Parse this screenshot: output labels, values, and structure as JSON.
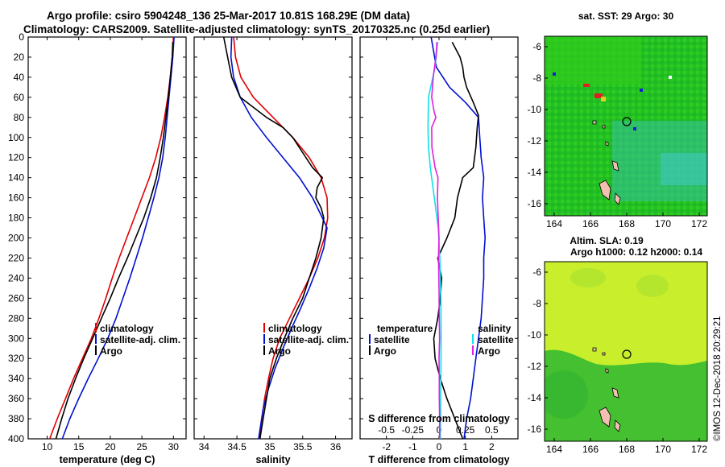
{
  "header": {
    "line1": "Argo profile: csiro 5904248_136 25-Mar-2017 10.81S 168.29E (DM data)",
    "line2": "Climatology: CARS2009. Satellite-adjusted climatology: synTS_20170325.nc (0.25d earlier)"
  },
  "colors": {
    "climatology": "#e00000",
    "satellite": "#0010d0",
    "argo": "#000000",
    "satellite_salinity": "#10e0e8",
    "argo_salinity": "#e020e0"
  },
  "chart_data": [
    {
      "type": "line",
      "id": "temperature",
      "xlabel": "temperature (deg C)",
      "ylabel": "depth",
      "xlim": [
        7,
        32
      ],
      "ylim": [
        400,
        0
      ],
      "xticks": [
        10,
        15,
        20,
        25,
        30
      ],
      "yticks": [
        0,
        20,
        40,
        60,
        80,
        100,
        120,
        140,
        160,
        180,
        200,
        220,
        240,
        260,
        280,
        300,
        320,
        340,
        360,
        380,
        400
      ],
      "legend": [
        "climatology",
        "satellite-adj. clim.",
        "Argo"
      ],
      "series": [
        {
          "name": "climatology",
          "color": "#e00000",
          "points": [
            [
              30,
              0
            ],
            [
              29.8,
              20
            ],
            [
              29.5,
              40
            ],
            [
              29.1,
              60
            ],
            [
              28.6,
              80
            ],
            [
              28,
              100
            ],
            [
              27.2,
              120
            ],
            [
              26.2,
              140
            ],
            [
              25,
              160
            ],
            [
              23.8,
              180
            ],
            [
              22.6,
              200
            ],
            [
              21.4,
              220
            ],
            [
              20.3,
              240
            ],
            [
              19.3,
              260
            ],
            [
              18.2,
              280
            ],
            [
              17,
              300
            ],
            [
              15.6,
              320
            ],
            [
              14.2,
              340
            ],
            [
              12.9,
              360
            ],
            [
              11.6,
              380
            ],
            [
              10.4,
              400
            ]
          ]
        },
        {
          "name": "satellite-adj. clim.",
          "color": "#0010d0",
          "points": [
            [
              30.1,
              0
            ],
            [
              29.9,
              20
            ],
            [
              29.6,
              40
            ],
            [
              29.3,
              60
            ],
            [
              29,
              80
            ],
            [
              28.7,
              100
            ],
            [
              28.3,
              120
            ],
            [
              27.7,
              140
            ],
            [
              26.9,
              160
            ],
            [
              26,
              180
            ],
            [
              25.1,
              200
            ],
            [
              24.1,
              220
            ],
            [
              23.1,
              240
            ],
            [
              22,
              260
            ],
            [
              20.9,
              280
            ],
            [
              19.6,
              300
            ],
            [
              18.1,
              320
            ],
            [
              16.5,
              340
            ],
            [
              15,
              360
            ],
            [
              13.6,
              380
            ],
            [
              12.4,
              400
            ]
          ]
        },
        {
          "name": "Argo",
          "color": "#000000",
          "points": [
            [
              29.9,
              5
            ],
            [
              29.8,
              20
            ],
            [
              29.5,
              40
            ],
            [
              29.2,
              60
            ],
            [
              28.8,
              80
            ],
            [
              28.4,
              100
            ],
            [
              27.9,
              120
            ],
            [
              27.3,
              140
            ],
            [
              26.4,
              160
            ],
            [
              25.3,
              180
            ],
            [
              24,
              200
            ],
            [
              22.7,
              220
            ],
            [
              21.3,
              240
            ],
            [
              20,
              260
            ],
            [
              18.6,
              280
            ],
            [
              17.2,
              300
            ],
            [
              15.8,
              320
            ],
            [
              14.5,
              340
            ],
            [
              13.3,
              360
            ],
            [
              12.3,
              380
            ],
            [
              11.4,
              400
            ]
          ]
        }
      ]
    },
    {
      "type": "line",
      "id": "salinity",
      "xlabel": "salinity",
      "ylabel": "depth",
      "xlim": [
        33.85,
        36.25
      ],
      "ylim": [
        400,
        0
      ],
      "xticks": [
        34,
        34.5,
        35,
        35.5,
        36
      ],
      "yticks": [
        0,
        20,
        40,
        60,
        80,
        100,
        120,
        140,
        160,
        180,
        200,
        220,
        240,
        260,
        280,
        300,
        320,
        340,
        360,
        380,
        400
      ],
      "legend": [
        "climatology",
        "satellite-adj. clim.",
        "Argo"
      ],
      "series": [
        {
          "name": "climatology",
          "color": "#e00000",
          "points": [
            [
              34.45,
              0
            ],
            [
              34.48,
              20
            ],
            [
              34.56,
              40
            ],
            [
              34.75,
              60
            ],
            [
              35.05,
              80
            ],
            [
              35.35,
              100
            ],
            [
              35.6,
              120
            ],
            [
              35.78,
              140
            ],
            [
              35.87,
              160
            ],
            [
              35.88,
              180
            ],
            [
              35.83,
              200
            ],
            [
              35.73,
              220
            ],
            [
              35.6,
              240
            ],
            [
              35.45,
              260
            ],
            [
              35.3,
              280
            ],
            [
              35.15,
              300
            ],
            [
              35.05,
              320
            ],
            [
              34.98,
              340
            ],
            [
              34.92,
              360
            ],
            [
              34.88,
              380
            ],
            [
              34.84,
              400
            ]
          ]
        },
        {
          "name": "satellite-adj. clim.",
          "color": "#0010d0",
          "points": [
            [
              34.42,
              0
            ],
            [
              34.41,
              20
            ],
            [
              34.45,
              40
            ],
            [
              34.55,
              60
            ],
            [
              34.72,
              80
            ],
            [
              34.95,
              100
            ],
            [
              35.2,
              120
            ],
            [
              35.45,
              140
            ],
            [
              35.65,
              160
            ],
            [
              35.8,
              180
            ],
            [
              35.87,
              190
            ],
            [
              35.82,
              210
            ],
            [
              35.72,
              230
            ],
            [
              35.6,
              250
            ],
            [
              35.47,
              270
            ],
            [
              35.33,
              290
            ],
            [
              35.2,
              310
            ],
            [
              35.08,
              330
            ],
            [
              34.98,
              350
            ],
            [
              34.9,
              370
            ],
            [
              34.83,
              400
            ]
          ]
        },
        {
          "name": "Argo",
          "color": "#000000",
          "points": [
            [
              34.3,
              0
            ],
            [
              34.36,
              20
            ],
            [
              34.42,
              40
            ],
            [
              34.55,
              60
            ],
            [
              34.95,
              80
            ],
            [
              35.2,
              90
            ],
            [
              35.35,
              100
            ],
            [
              35.5,
              115
            ],
            [
              35.65,
              130
            ],
            [
              35.8,
              140
            ],
            [
              35.72,
              150
            ],
            [
              35.7,
              160
            ],
            [
              35.78,
              170
            ],
            [
              35.82,
              180
            ],
            [
              35.78,
              200
            ],
            [
              35.7,
              220
            ],
            [
              35.6,
              240
            ],
            [
              35.5,
              260
            ],
            [
              35.35,
              280
            ],
            [
              35.22,
              300
            ],
            [
              35.1,
              320
            ],
            [
              35.0,
              340
            ],
            [
              34.95,
              360
            ],
            [
              34.9,
              380
            ],
            [
              34.85,
              400
            ]
          ]
        }
      ]
    },
    {
      "type": "line",
      "id": "difference",
      "xlabel": "T difference from climatology",
      "xlabel2": "S difference from climatology",
      "xlim": [
        -3,
        3
      ],
      "ylim": [
        400,
        0
      ],
      "xticks": [
        -2,
        -1,
        0,
        1,
        2
      ],
      "xticks_s": [
        "-0.5",
        "-0.25",
        "0",
        "0.25",
        "0.5"
      ],
      "yticks": [
        0,
        20,
        40,
        60,
        80,
        100,
        120,
        140,
        160,
        180,
        200,
        220,
        240,
        260,
        280,
        300,
        320,
        340,
        360,
        380,
        400
      ],
      "legend_left_title": "temperature",
      "legend_left": [
        "satellite",
        "Argo"
      ],
      "legend_right_title": "salinity",
      "legend_right": [
        "satellite",
        "Argo"
      ],
      "series": [
        {
          "name": "temperature satellite",
          "color": "#0010d0",
          "points": [
            [
              -0.3,
              0
            ],
            [
              -0.1,
              30
            ],
            [
              0.4,
              50
            ],
            [
              1.0,
              65
            ],
            [
              1.5,
              80
            ],
            [
              1.55,
              100
            ],
            [
              1.6,
              120
            ],
            [
              1.7,
              140
            ],
            [
              1.65,
              160
            ],
            [
              1.7,
              180
            ],
            [
              1.75,
              200
            ],
            [
              1.7,
              220
            ],
            [
              1.7,
              240
            ],
            [
              1.65,
              260
            ],
            [
              1.6,
              280
            ],
            [
              1.5,
              300
            ],
            [
              1.4,
              320
            ],
            [
              1.3,
              340
            ],
            [
              1.2,
              360
            ],
            [
              1.05,
              380
            ],
            [
              0.95,
              400
            ]
          ]
        },
        {
          "name": "temperature Argo",
          "color": "#000000",
          "points": [
            [
              0.5,
              5
            ],
            [
              0.8,
              20
            ],
            [
              0.9,
              30
            ],
            [
              0.95,
              40
            ],
            [
              1.05,
              50
            ],
            [
              1.3,
              65
            ],
            [
              1.5,
              78
            ],
            [
              1.45,
              90
            ],
            [
              1.4,
              110
            ],
            [
              1.3,
              130
            ],
            [
              0.9,
              140
            ],
            [
              0.7,
              160
            ],
            [
              0.6,
              180
            ],
            [
              0.3,
              200
            ],
            [
              -0.05,
              220
            ],
            [
              0.1,
              240
            ],
            [
              0.05,
              260
            ],
            [
              -0.05,
              280
            ],
            [
              -0.2,
              300
            ],
            [
              -0.15,
              320
            ],
            [
              0.05,
              340
            ],
            [
              0.3,
              360
            ],
            [
              0.6,
              380
            ],
            [
              0.9,
              400
            ]
          ]
        },
        {
          "name": "salinity satellite",
          "color": "#10e0e8",
          "points": [
            [
              -0.05,
              5
            ],
            [
              -0.15,
              30
            ],
            [
              -0.4,
              60
            ],
            [
              -0.42,
              90
            ],
            [
              -0.4,
              110
            ],
            [
              -0.33,
              130
            ],
            [
              -0.23,
              150
            ],
            [
              -0.13,
              170
            ],
            [
              -0.03,
              190
            ],
            [
              0.03,
              220
            ],
            [
              0.07,
              260
            ],
            [
              0.08,
              300
            ],
            [
              0.07,
              340
            ],
            [
              0.06,
              370
            ],
            [
              0.05,
              400
            ]
          ]
        },
        {
          "name": "salinity Argo",
          "color": "#e020e0",
          "points": [
            [
              -0.08,
              5
            ],
            [
              -0.12,
              20
            ],
            [
              -0.22,
              40
            ],
            [
              -0.28,
              60
            ],
            [
              -0.18,
              75
            ],
            [
              -0.12,
              80
            ],
            [
              -0.28,
              90
            ],
            [
              -0.27,
              110
            ],
            [
              -0.15,
              130
            ],
            [
              -0.04,
              140
            ],
            [
              -0.06,
              160
            ],
            [
              -0.03,
              180
            ],
            [
              0.0,
              200
            ],
            [
              -0.02,
              220
            ],
            [
              0.0,
              250
            ],
            [
              0.01,
              280
            ],
            [
              0.02,
              300
            ],
            [
              0.0,
              320
            ],
            [
              0.01,
              340
            ],
            [
              0.01,
              360
            ],
            [
              0.02,
              380
            ],
            [
              0.02,
              400
            ]
          ]
        }
      ]
    }
  ],
  "maps": {
    "sst": {
      "title": "sat. SST: 29 Argo: 30",
      "xticks": [
        "164",
        "166",
        "168",
        "170",
        "172"
      ],
      "yticks": [
        "-6",
        "-8",
        "-10",
        "-12",
        "-14",
        "-16"
      ]
    },
    "sla": {
      "title1": "Altim. SLA: 0.19",
      "title2": "Argo h1000: 0.12 h2000: 0.14",
      "xticks": [
        "164",
        "166",
        "168",
        "170",
        "172"
      ],
      "yticks": [
        "-6",
        "-8",
        "-10",
        "-12",
        "-14",
        "-16"
      ]
    }
  },
  "footer": {
    "stamp": "©IMOS 12-Dec-2018 20:29:21"
  }
}
